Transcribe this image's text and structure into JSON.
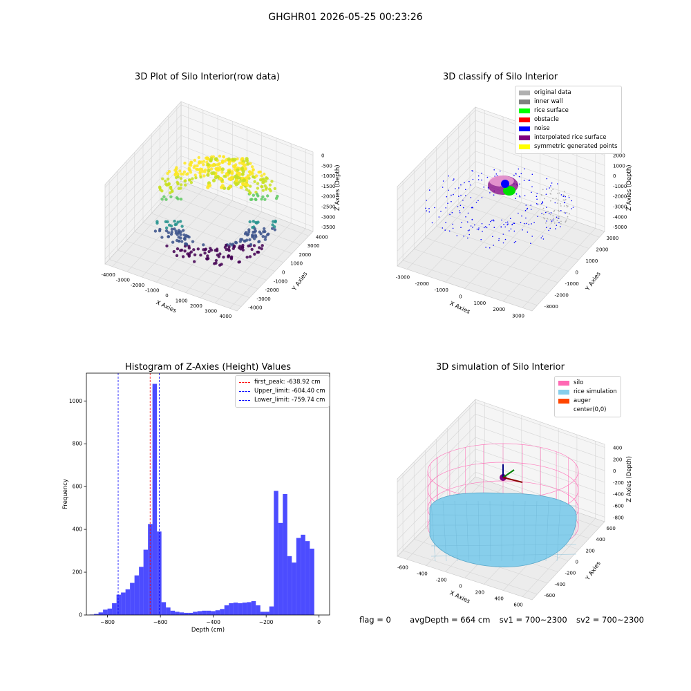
{
  "suptitle": "GHGHR01 2026-05-25 00:23:26",
  "panels": {
    "raw": {
      "title": "3D Plot of Silo Interior(row data)",
      "xlabel": "X Axies",
      "ylabel": "Y Axies",
      "zlabel": "Z Axies (Depth)",
      "xticks": [
        "-4000",
        "-3000",
        "-2000",
        "-1000",
        "0",
        "1000",
        "2000",
        "3000",
        "4000"
      ],
      "yticks": [
        "-4000",
        "-3000",
        "-2000",
        "-1000",
        "0",
        "1000",
        "2000",
        "3000",
        "4000"
      ],
      "zticks": [
        "0",
        "-500",
        "-1000",
        "-1500",
        "-2000",
        "-2500",
        "-3000",
        "-3500"
      ]
    },
    "classify": {
      "title": "3D classify of Silo Interior",
      "xlabel": "X Axies",
      "ylabel": "Y Axies",
      "zlabel": "Z Axies (Depth)",
      "xticks": [
        "-3000",
        "-2000",
        "-1000",
        "0",
        "1000",
        "2000",
        "3000"
      ],
      "yticks": [
        "-3000",
        "-2000",
        "-1000",
        "0",
        "1000",
        "2000",
        "3000"
      ],
      "zticks": [
        "2000",
        "1000",
        "0",
        "-1000",
        "-2000",
        "-3000",
        "-4000",
        "-5000"
      ],
      "legend": [
        {
          "label": "original data",
          "color": "#b0b0b0"
        },
        {
          "label": "inner wall",
          "color": "#808080"
        },
        {
          "label": "rice surface",
          "color": "#00ff00"
        },
        {
          "label": "obstacle",
          "color": "#ff0000"
        },
        {
          "label": "noise",
          "color": "#0000ff"
        },
        {
          "label": "interpolated rice surface",
          "color": "#800080"
        },
        {
          "label": "symmetric generated points",
          "color": "#ffff00"
        }
      ]
    },
    "simulation": {
      "title": "3D simulation of Silo Interior",
      "xlabel": "X Axies",
      "ylabel": "Y Axies",
      "zlabel": "Z Axies (Depth)",
      "xticks": [
        "-600",
        "-400",
        "-200",
        "0",
        "200",
        "400",
        "600"
      ],
      "yticks": [
        "-600",
        "-400",
        "-200",
        "0",
        "200",
        "400",
        "600"
      ],
      "zticks": [
        "400",
        "200",
        "0",
        "-200",
        "-400",
        "-600",
        "-800"
      ],
      "legend": [
        {
          "label": "silo",
          "color": "#ff69b4"
        },
        {
          "label": "rice simulation",
          "color": "#87ceeb"
        },
        {
          "label": "auger",
          "color": "#ff4500"
        },
        {
          "label": "center(0,0)",
          "color": "#ffffff"
        }
      ]
    }
  },
  "chart_data": {
    "type": "bar",
    "title": "Histogram of Z-Axies (Height) Values",
    "xlabel": "Depth (cm)",
    "ylabel": "Frequency",
    "xlim": [
      -880,
      40
    ],
    "ylim": [
      0,
      1130
    ],
    "xticks": [
      -800,
      -600,
      -400,
      -200,
      0
    ],
    "yticks": [
      0,
      200,
      400,
      600,
      800,
      1000
    ],
    "bin_width": 17,
    "bin_starts": [
      -868,
      -851,
      -834,
      -817,
      -800,
      -783,
      -766,
      -749,
      -732,
      -715,
      -698,
      -681,
      -664,
      -647,
      -630,
      -613,
      -596,
      -579,
      -562,
      -545,
      -528,
      -511,
      -494,
      -477,
      -460,
      -443,
      -426,
      -409,
      -392,
      -375,
      -358,
      -341,
      -324,
      -307,
      -290,
      -273,
      -256,
      -239,
      -222,
      -205,
      -188,
      -171,
      -154,
      -137,
      -120,
      -103,
      -86,
      -69,
      -52,
      -35,
      -18
    ],
    "values": [
      2,
      5,
      12,
      25,
      30,
      55,
      95,
      105,
      120,
      150,
      185,
      225,
      305,
      425,
      1080,
      390,
      60,
      35,
      20,
      15,
      12,
      10,
      10,
      15,
      18,
      20,
      20,
      18,
      22,
      28,
      45,
      55,
      58,
      55,
      58,
      60,
      65,
      45,
      15,
      15,
      40,
      580,
      430,
      565,
      275,
      245,
      360,
      375,
      345,
      310,
      0
    ],
    "bar_color": "#0000ff",
    "bar_alpha": 0.7,
    "lines": [
      {
        "x": -638.92,
        "color": "#ff0000",
        "label": "first_peak: -638.92 cm"
      },
      {
        "x": -604.4,
        "color": "#0000ff",
        "label": "Upper_limit: -604.40 cm"
      },
      {
        "x": -759.74,
        "color": "#0000ff",
        "label": "Lower_limit: -759.74 cm"
      }
    ],
    "legend_position": "upper right",
    "grid": false
  },
  "status": {
    "flag": "flag = 0",
    "avg_depth": "avgDepth = 664 cm",
    "sv1": "sv1 = 700~2300",
    "sv2": "sv2 = 700~2300"
  }
}
